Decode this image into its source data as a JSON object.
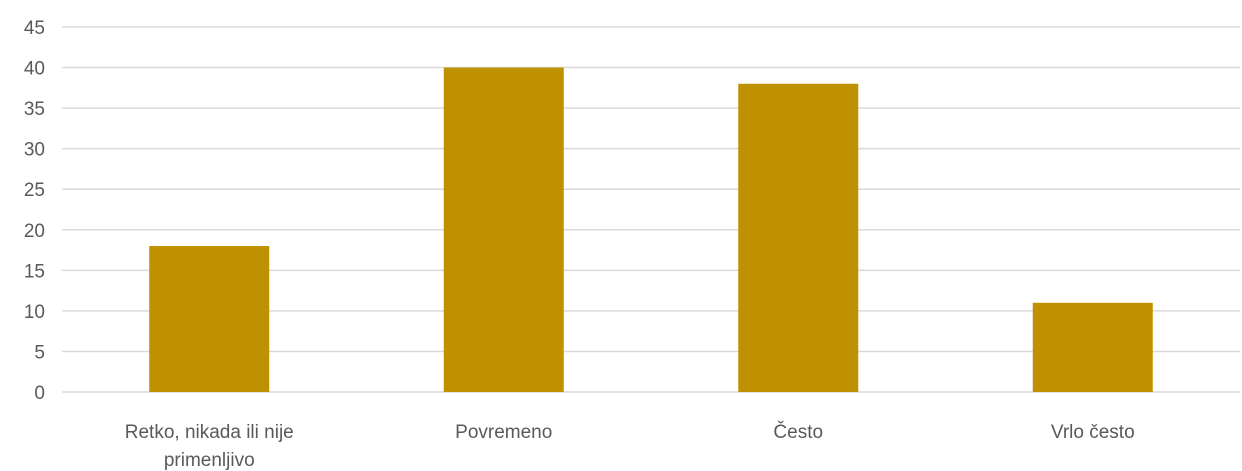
{
  "chart_data": {
    "type": "bar",
    "categories": [
      "Retko, nikada ili nije primenljivo",
      "Povremeno",
      "Često",
      "Vrlo često"
    ],
    "category_lines": [
      [
        "Retko, nikada ili nije",
        "primenljivo"
      ],
      [
        "Povremeno"
      ],
      [
        "Često"
      ],
      [
        "Vrlo često"
      ]
    ],
    "values": [
      18,
      40,
      38,
      11
    ],
    "ylim": [
      0,
      45
    ],
    "yticks": [
      0,
      5,
      10,
      15,
      20,
      25,
      30,
      35,
      40,
      45
    ],
    "grid": true,
    "bar_color": "#bf9000",
    "title": "",
    "xlabel": "",
    "ylabel": ""
  }
}
